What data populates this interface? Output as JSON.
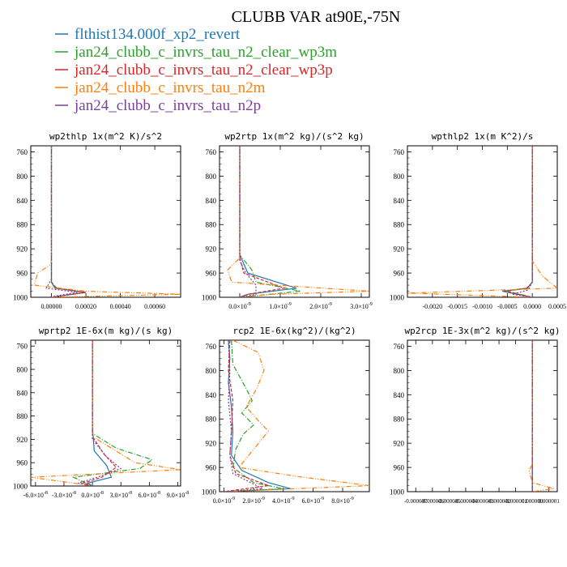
{
  "figure": {
    "title": "CLUBB VAR at90E,-75N",
    "legend": [
      {
        "label": "flthist134.000f_xp2_revert",
        "color": "#1f77b4"
      },
      {
        "label": "jan24_clubb_c_invrs_tau_n2_clear_wp3m",
        "color": "#2ca02c"
      },
      {
        "label": "jan24_clubb_c_invrs_tau_n2_clear_wp3p",
        "color": "#d62728"
      },
      {
        "label": "jan24_clubb_c_invrs_tau_n2m",
        "color": "#ff7f0e"
      },
      {
        "label": "jan24_clubb_c_invrs_tau_n2p",
        "color": "#7b3fa0"
      }
    ]
  },
  "chart_data": [
    {
      "type": "line",
      "title": "wp2thlp  1x(m^2 K)/s^2",
      "ylim": [
        1000,
        750
      ],
      "xlim": [
        -0.00012,
        0.00075
      ],
      "yticks": [
        760,
        800,
        840,
        880,
        920,
        960,
        1000
      ],
      "xticks": [
        0.0,
        0.0002,
        0.0004,
        0.0006
      ],
      "xtick_labels": [
        "0.00000",
        "0.00020",
        "0.00040",
        "0.00060"
      ],
      "series": [
        {
          "name": "flthist134.000f_xp2_revert",
          "y": [
            750,
            950,
            975,
            985,
            992,
            1000
          ],
          "x": [
            0.0,
            0.0,
            0.0,
            2e-05,
            0.0002,
            0.0
          ]
        },
        {
          "name": "jan24_clubb_c_invrs_tau_n2_clear_wp3m",
          "y": [
            750,
            950,
            975,
            985,
            992,
            1000
          ],
          "x": [
            0.0,
            0.0,
            0.0,
            3e-05,
            0.00019,
            0.0
          ]
        },
        {
          "name": "jan24_clubb_c_invrs_tau_n2_clear_wp3p",
          "y": [
            750,
            950,
            975,
            985,
            992,
            1000
          ],
          "x": [
            0.0,
            0.0,
            0.0,
            3e-05,
            0.0002,
            0.0
          ]
        },
        {
          "name": "jan24_clubb_c_invrs_tau_n2m",
          "y": [
            750,
            945,
            960,
            980,
            990,
            995,
            1000
          ],
          "x": [
            0.0,
            0.0,
            -8e-05,
            -0.0001,
            0.0002,
            0.00075,
            0.0
          ]
        },
        {
          "name": "jan24_clubb_c_invrs_tau_n2p",
          "y": [
            750,
            950,
            970,
            985,
            992,
            1000
          ],
          "x": [
            0.0,
            0.0,
            0.0,
            -3e-05,
            0.00015,
            -2e-05
          ]
        }
      ]
    },
    {
      "type": "line",
      "title": "wp2rtp  1x(m^2 kg)/(s^2 kg)",
      "ylim": [
        1000,
        750
      ],
      "xlim": [
        -5e-10,
        3.2e-09
      ],
      "yticks": [
        760,
        800,
        840,
        880,
        920,
        960,
        1000
      ],
      "xticks": [
        0.0,
        1e-09,
        2e-09,
        3e-09
      ],
      "xtick_labels": [
        "0.0x10^-9",
        "1.0x10^-9",
        "2.0x10^-9",
        "3.0x10^-9"
      ],
      "series": [
        {
          "name": "flthist134.000f_xp2_revert",
          "y": [
            750,
            930,
            960,
            985,
            995,
            1000
          ],
          "x": [
            0.0,
            0.0,
            2e-10,
            1.4e-09,
            2e-10,
            0.0
          ]
        },
        {
          "name": "jan24_clubb_c_invrs_tau_n2_clear_wp3m",
          "y": [
            750,
            930,
            955,
            975,
            990,
            1000
          ],
          "x": [
            0.0,
            0.0,
            3e-10,
            4e-10,
            1.5e-09,
            0.0
          ]
        },
        {
          "name": "jan24_clubb_c_invrs_tau_n2_clear_wp3p",
          "y": [
            750,
            935,
            960,
            985,
            995,
            1000
          ],
          "x": [
            0.0,
            0.0,
            1e-10,
            1.1e-09,
            2e-10,
            0.0
          ]
        },
        {
          "name": "jan24_clubb_c_invrs_tau_n2m",
          "y": [
            750,
            935,
            955,
            975,
            990,
            995,
            1000
          ],
          "x": [
            0.0,
            0.0,
            -3e-10,
            -2e-10,
            3.2e-09,
            8e-10,
            0.0
          ]
        },
        {
          "name": "jan24_clubb_c_invrs_tau_n2p",
          "y": [
            750,
            940,
            960,
            980,
            995,
            1000
          ],
          "x": [
            0.0,
            0.0,
            1.5e-10,
            4e-10,
            4e-10,
            0.0
          ]
        }
      ]
    },
    {
      "type": "line",
      "title": "wpthlp2  1x(m K^2)/s",
      "ylim": [
        1000,
        750
      ],
      "xlim": [
        -0.0025,
        0.0005
      ],
      "yticks": [
        760,
        800,
        840,
        880,
        920,
        960,
        1000
      ],
      "xticks": [
        -0.002,
        -0.0015,
        -0.001,
        -0.0005,
        0.0,
        0.0005
      ],
      "xtick_labels": [
        "-0.0020",
        "-0.0015",
        "-0.0010",
        "-0.0005",
        "0.0000",
        "0.0005"
      ],
      "series": [
        {
          "name": "flthist134.000f_xp2_revert",
          "y": [
            750,
            950,
            975,
            985,
            990,
            1000
          ],
          "x": [
            0.0,
            0.0,
            0.0,
            -0.0001,
            -0.0006,
            0.0
          ]
        },
        {
          "name": "jan24_clubb_c_invrs_tau_n2_clear_wp3m",
          "y": [
            750,
            950,
            975,
            985,
            990,
            1000
          ],
          "x": [
            0.0,
            0.0,
            0.0,
            -0.00012,
            -0.0005,
            0.0
          ]
        },
        {
          "name": "jan24_clubb_c_invrs_tau_n2_clear_wp3p",
          "y": [
            750,
            950,
            975,
            985,
            990,
            1000
          ],
          "x": [
            0.0,
            0.0,
            0.0,
            -0.0001,
            -0.00055,
            0.0
          ]
        },
        {
          "name": "jan24_clubb_c_invrs_tau_n2m",
          "y": [
            750,
            940,
            965,
            985,
            993,
            1000
          ],
          "x": [
            0.0,
            0.0,
            0.0002,
            0.0005,
            -0.0025,
            0.0
          ]
        },
        {
          "name": "jan24_clubb_c_invrs_tau_n2p",
          "y": [
            750,
            950,
            975,
            988,
            995,
            1000
          ],
          "x": [
            0.0,
            0.0,
            0.0,
            -8e-05,
            -0.0004,
            0.0
          ]
        }
      ]
    },
    {
      "type": "line",
      "title": "wprtp2  1E-6x(m kg)/(s kg)",
      "ylim": [
        1000,
        750
      ],
      "xlim": [
        -6.5e-08,
        9.3e-08
      ],
      "yticks": [
        760,
        800,
        840,
        880,
        920,
        960,
        1000
      ],
      "xticks": [
        -6e-08,
        -3e-08,
        0.0,
        3e-08,
        6e-08,
        9e-08
      ],
      "xtick_labels": [
        "-6.0x10^-8",
        "-3.0x10^-8",
        "0.0x10^-8",
        "3.0x10^-8",
        "6.0x10^-8",
        "9.0x10^-8"
      ],
      "series": [
        {
          "name": "flthist134.000f_xp2_revert",
          "y": [
            750,
            900,
            940,
            965,
            985,
            995,
            1000
          ],
          "x": [
            0.0,
            0.0,
            2e-09,
            1.5e-08,
            2e-08,
            -5e-09,
            0.0
          ]
        },
        {
          "name": "jan24_clubb_c_invrs_tau_n2_clear_wp3m",
          "y": [
            750,
            910,
            935,
            955,
            970,
            985,
            1000
          ],
          "x": [
            0.0,
            0.0,
            2.5e-08,
            6.3e-08,
            5e-08,
            -2e-08,
            0.0
          ]
        },
        {
          "name": "jan24_clubb_c_invrs_tau_n2_clear_wp3p",
          "y": [
            750,
            915,
            945,
            968,
            985,
            995,
            1000
          ],
          "x": [
            0.0,
            0.0,
            1.2e-08,
            2.5e-08,
            1e-08,
            -1e-08,
            0.0
          ]
        },
        {
          "name": "jan24_clubb_c_invrs_tau_n2m",
          "y": [
            750,
            915,
            935,
            960,
            972,
            985,
            995,
            1000
          ],
          "x": [
            0.0,
            0.0,
            2e-08,
            4.5e-08,
            9.3e-08,
            -6.5e-08,
            -2e-08,
            0.0
          ]
        },
        {
          "name": "jan24_clubb_c_invrs_tau_n2p",
          "y": [
            750,
            920,
            950,
            970,
            985,
            995,
            1000
          ],
          "x": [
            0.0,
            0.0,
            1.5e-08,
            3e-08,
            5e-09,
            -1.5e-08,
            0.0
          ]
        }
      ]
    },
    {
      "type": "line",
      "title": "rcp2  1E-6x(kg^2)/(kg^2)",
      "ylim": [
        1000,
        750
      ],
      "xlim": [
        -3e-10,
        9.8e-09
      ],
      "yticks": [
        760,
        800,
        840,
        880,
        920,
        960,
        1000
      ],
      "xticks": [
        0.0,
        2e-09,
        4e-09,
        6e-09,
        8e-09
      ],
      "xtick_labels": [
        "0.0x10^-9",
        "2.0x10^-9",
        "4.0x10^-9",
        "6.0x10^-9",
        "8.0x10^-9"
      ],
      "series": [
        {
          "name": "flthist134.000f_xp2_revert",
          "y": [
            750,
            780,
            820,
            860,
            900,
            940,
            965,
            985,
            995,
            1000
          ],
          "x": [
            3e-10,
            4e-10,
            3e-10,
            5e-10,
            6e-10,
            5e-10,
            1.2e-09,
            3e-09,
            4.5e-09,
            0.0
          ]
        },
        {
          "name": "jan24_clubb_c_invrs_tau_n2_clear_wp3m",
          "y": [
            750,
            790,
            830,
            850,
            870,
            890,
            905,
            930,
            960,
            985,
            995,
            1000
          ],
          "x": [
            5e-10,
            6e-10,
            1.5e-09,
            1.9e-09,
            1.2e-09,
            2e-09,
            1.3e-09,
            8e-10,
            6e-10,
            2e-09,
            4e-09,
            0.0
          ]
        },
        {
          "name": "jan24_clubb_c_invrs_tau_n2_clear_wp3p",
          "y": [
            750,
            800,
            850,
            900,
            940,
            970,
            990,
            1000
          ],
          "x": [
            4e-10,
            3e-10,
            6e-10,
            5e-10,
            4e-10,
            8e-10,
            3e-09,
            0.0
          ]
        },
        {
          "name": "jan24_clubb_c_invrs_tau_n2m",
          "y": [
            750,
            770,
            800,
            830,
            860,
            880,
            900,
            930,
            960,
            975,
            990,
            1000
          ],
          "x": [
            6e-10,
            2.3e-09,
            2.7e-09,
            2.2e-09,
            1.5e-09,
            2.2e-09,
            3e-09,
            2e-09,
            1e-09,
            5e-09,
            9.8e-09,
            0.0
          ]
        },
        {
          "name": "jan24_clubb_c_invrs_tau_n2p",
          "y": [
            750,
            800,
            850,
            900,
            940,
            970,
            985,
            995,
            1000
          ],
          "x": [
            3e-10,
            4e-10,
            3e-10,
            5e-10,
            4e-10,
            6e-10,
            1.8e-09,
            2.6e-09,
            0.0
          ]
        }
      ]
    },
    {
      "type": "line",
      "title": "wp2rcp  1E-3x(m^2 kg)/(s^2 kg)",
      "ylim": [
        1000,
        750
      ],
      "xlim": [
        -7.5e-06,
        1.5e-06
      ],
      "yticks": [
        760,
        800,
        840,
        880,
        920,
        960,
        1000
      ],
      "xticks": [
        -7e-06,
        -6e-06,
        -5e-06,
        -4e-06,
        -3e-06,
        -2e-06,
        -1e-06,
        0.0,
        1e-06
      ],
      "xtick_labels": [
        "-0.000007",
        "-0.000006",
        "-0.000005",
        "-0.000004",
        "-0.000003",
        "-0.000002",
        "-0.000001",
        "0.000000",
        "0.000001"
      ],
      "series": [
        {
          "name": "flthist134.000f_xp2_revert",
          "y": [
            750,
            1000
          ],
          "x": [
            0.0,
            0.0
          ]
        },
        {
          "name": "jan24_clubb_c_invrs_tau_n2_clear_wp3m",
          "y": [
            750,
            1000
          ],
          "x": [
            0.0,
            0.0
          ]
        },
        {
          "name": "jan24_clubb_c_invrs_tau_n2_clear_wp3p",
          "y": [
            750,
            980,
            1000
          ],
          "x": [
            0.0,
            0.0,
            0.0
          ]
        },
        {
          "name": "jan24_clubb_c_invrs_tau_n2m",
          "y": [
            750,
            955,
            965,
            985,
            995,
            1000
          ],
          "x": [
            0.0,
            0.0,
            -2e-07,
            0.0,
            1.3e-06,
            0.0
          ]
        },
        {
          "name": "jan24_clubb_c_invrs_tau_n2p",
          "y": [
            750,
            1000
          ],
          "x": [
            0.0,
            0.0
          ]
        }
      ]
    }
  ]
}
